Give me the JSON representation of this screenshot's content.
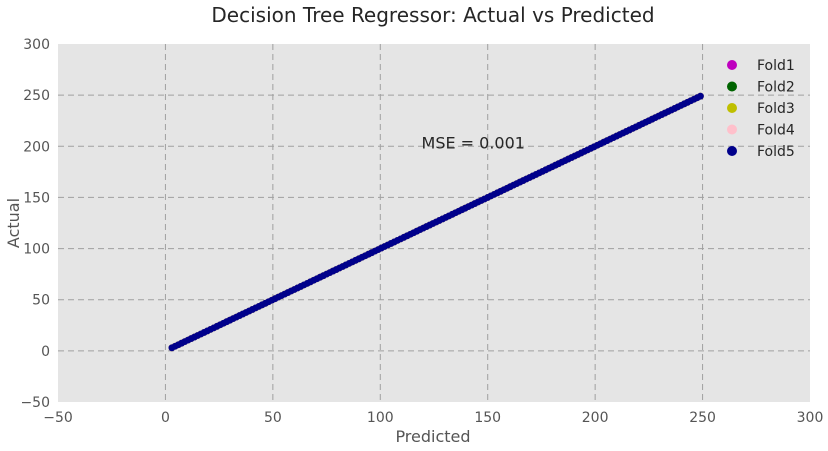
{
  "chart_data": {
    "type": "scatter",
    "title": "Decision Tree Regressor: Actual vs Predicted",
    "xlabel": "Predicted",
    "ylabel": "Actual",
    "xlim": [
      -50,
      300
    ],
    "ylim": [
      -50,
      300
    ],
    "xticks": [
      -50,
      0,
      50,
      100,
      150,
      200,
      250,
      300
    ],
    "yticks": [
      -50,
      0,
      50,
      100,
      150,
      200,
      250,
      300
    ],
    "xtick_labels": [
      "−50",
      "0",
      "50",
      "100",
      "150",
      "200",
      "250",
      "300"
    ],
    "ytick_labels": [
      "−50",
      "0",
      "50",
      "100",
      "150",
      "200",
      "250",
      "300"
    ],
    "grid": true,
    "background": "#e5e5e5",
    "grid_color": "#a0a0a0",
    "legend_position": "top-right",
    "annotation": {
      "text": "MSE = 0.001",
      "x": 120,
      "y": 200
    },
    "series": [
      {
        "name": "Fold1",
        "color": "#bf00bf",
        "x_range": [
          3,
          250
        ]
      },
      {
        "name": "Fold2",
        "color": "#006400",
        "x_range": [
          3,
          250
        ]
      },
      {
        "name": "Fold3",
        "color": "#bfbf00",
        "x_range": [
          3,
          250
        ]
      },
      {
        "name": "Fold4",
        "color": "#ffc0cb",
        "x_range": [
          3,
          250
        ]
      },
      {
        "name": "Fold5",
        "color": "#00008b",
        "x_range": [
          3,
          250
        ]
      }
    ]
  }
}
